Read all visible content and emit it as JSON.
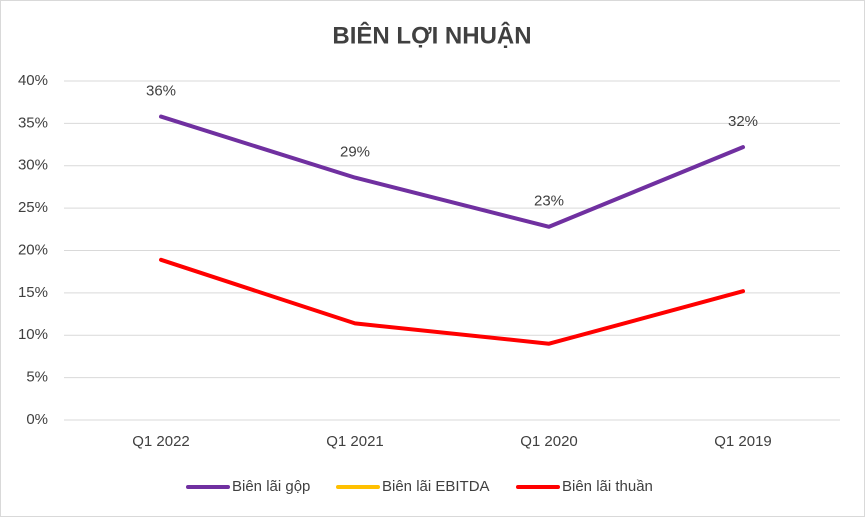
{
  "chart_data": {
    "type": "line",
    "title": "BIÊN LỢI NHUẬN",
    "categories": [
      "Q1 2022",
      "Q1 2021",
      "Q1 2020",
      "Q1 2019"
    ],
    "series": [
      {
        "name": "Biên lãi gộp",
        "color": "#7030a0",
        "values": [
          35.8,
          28.6,
          22.8,
          32.2
        ],
        "value_labels": [
          "36%",
          "29%",
          "23%",
          "32%"
        ]
      },
      {
        "name": "Biên lãi EBITDA",
        "color": "#ffc000",
        "values": [
          null,
          null,
          null,
          null
        ]
      },
      {
        "name": "Biên lãi thuần",
        "color": "#ff0000",
        "values": [
          18.9,
          11.4,
          9.0,
          15.2
        ]
      }
    ],
    "ylim": [
      0,
      40
    ],
    "yticks": [
      {
        "value": 0,
        "label": "0%"
      },
      {
        "value": 5,
        "label": "5%"
      },
      {
        "value": 10,
        "label": "10%"
      },
      {
        "value": 15,
        "label": "15%"
      },
      {
        "value": 20,
        "label": "20%"
      },
      {
        "value": 25,
        "label": "25%"
      },
      {
        "value": 30,
        "label": "30%"
      },
      {
        "value": 35,
        "label": "35%"
      },
      {
        "value": 40,
        "label": "40%"
      }
    ],
    "grid": true,
    "legend": "bottom"
  }
}
